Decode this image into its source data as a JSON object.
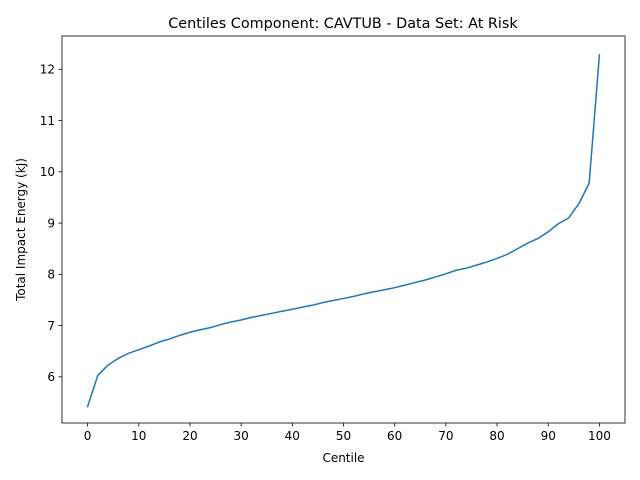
{
  "chart_data": {
    "type": "line",
    "title": "Centiles Component: CAVTUB - Data Set: At Risk",
    "xlabel": "Centile",
    "ylabel": "Total Impact Energy (kJ)",
    "xlim": [
      -5,
      105
    ],
    "ylim": [
      5.1,
      12.65
    ],
    "xticks": [
      0,
      10,
      20,
      30,
      40,
      50,
      60,
      70,
      80,
      90,
      100
    ],
    "yticks": [
      6,
      7,
      8,
      9,
      10,
      11,
      12
    ],
    "grid": false,
    "legend": "none",
    "line_color": "#1f77b4",
    "series": [
      {
        "x": [
          0,
          2,
          4,
          6,
          8,
          10,
          12,
          14,
          16,
          18,
          20,
          22,
          24,
          26,
          28,
          30,
          32,
          34,
          36,
          38,
          40,
          42,
          44,
          46,
          48,
          50,
          52,
          54,
          56,
          58,
          60,
          62,
          64,
          66,
          68,
          70,
          72,
          74,
          76,
          78,
          80,
          82,
          84,
          86,
          88,
          90,
          92,
          94,
          96,
          98,
          100
        ],
        "y": [
          5.42,
          6.03,
          6.23,
          6.36,
          6.46,
          6.53,
          6.6,
          6.68,
          6.74,
          6.81,
          6.87,
          6.92,
          6.96,
          7.02,
          7.07,
          7.11,
          7.16,
          7.2,
          7.24,
          7.28,
          7.32,
          7.36,
          7.4,
          7.45,
          7.49,
          7.53,
          7.57,
          7.62,
          7.66,
          7.7,
          7.74,
          7.79,
          7.84,
          7.89,
          7.95,
          8.01,
          8.08,
          8.12,
          8.18,
          8.24,
          8.31,
          8.39,
          8.5,
          8.61,
          8.7,
          8.83,
          8.99,
          9.1,
          9.38,
          9.78,
          12.28
        ]
      }
    ]
  }
}
